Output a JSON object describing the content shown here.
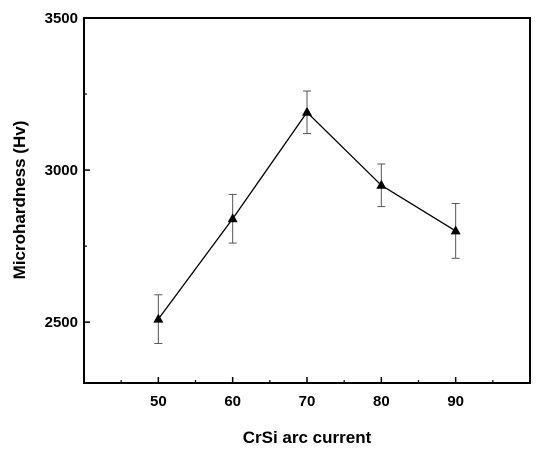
{
  "chart_data": {
    "type": "line",
    "title": "",
    "xlabel": "CrSi arc current",
    "ylabel": "Microhardness (Hv)",
    "x": [
      50,
      60,
      70,
      80,
      90
    ],
    "xlim": [
      40,
      100
    ],
    "ylim": [
      2300,
      3500
    ],
    "xticks": [
      "50",
      "60",
      "70",
      "80",
      "90"
    ],
    "xtick_values": [
      50,
      60,
      70,
      80,
      90
    ],
    "yticks": [
      "2500",
      "3000",
      "3500"
    ],
    "ytick_values": [
      2500,
      3000,
      3500
    ],
    "grid": false,
    "marker": "triangle",
    "series": [
      {
        "values": [
          2510,
          2840,
          3190,
          2950,
          2800
        ],
        "error": [
          80,
          80,
          70,
          70,
          90
        ],
        "color": "#000000"
      }
    ]
  }
}
